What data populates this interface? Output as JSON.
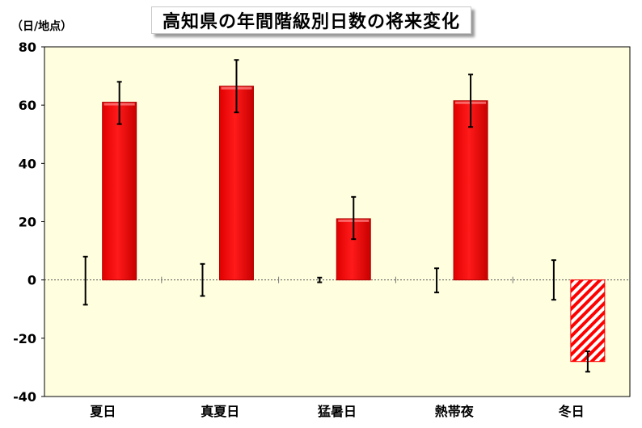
{
  "chart_data": {
    "type": "bar",
    "title": "高知県の年間階級別日数の将来変化",
    "ylabel": "（日/地点）",
    "ylim": [
      -40,
      80
    ],
    "yticks": [
      -40,
      -20,
      0,
      20,
      40,
      60,
      80
    ],
    "categories": [
      "夏日",
      "真夏日",
      "猛暑日",
      "熱帯夜",
      "冬日"
    ],
    "series": [
      {
        "role": "future-change",
        "values": [
          61,
          66.5,
          21,
          61.5,
          -28
        ],
        "error_low": [
          53.5,
          57.5,
          14,
          52.5,
          -31.5
        ],
        "error_high": [
          68,
          75.5,
          28.5,
          70.5,
          -24.5
        ],
        "colors": [
          "#ff0000",
          "#ff0000",
          "#ff0000",
          "#ff0000",
          "hatched-red"
        ]
      },
      {
        "role": "present-variability",
        "error_low": [
          -8.5,
          -5.5,
          -0.8,
          -4.3,
          -6.8
        ],
        "error_high": [
          8,
          5.5,
          0.8,
          4,
          6.8
        ]
      }
    ],
    "plot_background": "#ffffe0",
    "bar_color": "#ff0000",
    "grid": false
  }
}
